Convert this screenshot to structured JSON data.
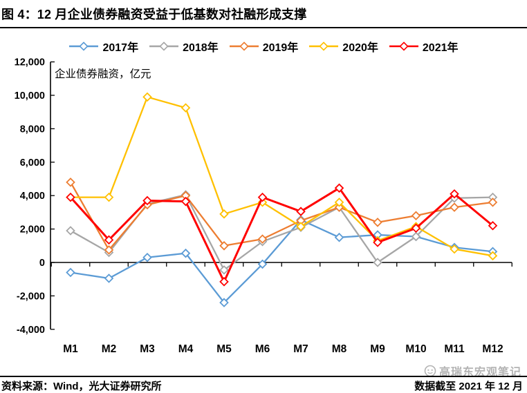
{
  "page": {
    "title": "图 4：12 月企业债券融资受益于低基数对社融形成支撑",
    "watermark": "高瑞东宏观笔记",
    "footer": {
      "source": "资料来源：Wind，光大证券研究所",
      "note": "数据截至 2021 年 12 月"
    }
  },
  "chart_data": {
    "type": "line",
    "annotation": "企业债券融资，亿元",
    "categories": [
      "M1",
      "M2",
      "M3",
      "M4",
      "M5",
      "M6",
      "M7",
      "M8",
      "M9",
      "M10",
      "M11",
      "M12"
    ],
    "ylim": [
      -4000,
      12000
    ],
    "ytick_step": 2000,
    "grid": false,
    "legend_position": "top",
    "marker": "diamond-open",
    "series": [
      {
        "name": "2017年",
        "color": "#5B9BD5",
        "values": [
          -600,
          -950,
          300,
          550,
          -2400,
          -100,
          2550,
          1500,
          1650,
          1550,
          900,
          650
        ]
      },
      {
        "name": "2018年",
        "color": "#A6A6A6",
        "values": [
          1900,
          600,
          3500,
          4050,
          -450,
          1250,
          2100,
          3300,
          0,
          1550,
          3850,
          3900
        ]
      },
      {
        "name": "2019年",
        "color": "#ED7D31",
        "values": [
          4800,
          750,
          3450,
          4000,
          1000,
          1400,
          2500,
          3300,
          2400,
          2800,
          3300,
          3600
        ]
      },
      {
        "name": "2020年",
        "color": "#FFC000",
        "values": [
          3900,
          3900,
          9900,
          9250,
          2900,
          3600,
          2150,
          3600,
          1300,
          2150,
          800,
          400
        ]
      },
      {
        "name": "2021年",
        "color": "#FF0000",
        "values": [
          3900,
          1350,
          3700,
          3650,
          -1150,
          3900,
          3050,
          4450,
          1200,
          2050,
          4100,
          2200
        ]
      }
    ]
  }
}
